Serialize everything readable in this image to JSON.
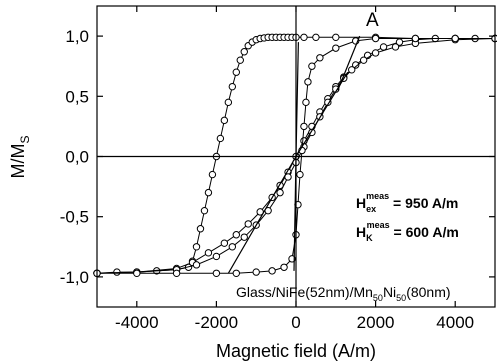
{
  "chart_data": {
    "type": "scatter",
    "xlabel": "Magnetic field (A/m)",
    "ylabel": {
      "main": "M/M",
      "sub": "S"
    },
    "xlim": [
      -5000,
      5000
    ],
    "ylim": [
      -1.25,
      1.25
    ],
    "x_ticks": [
      -4000,
      -2000,
      0,
      2000,
      4000
    ],
    "x_tick_labels": [
      "-4000",
      "-2000",
      "0",
      "2000",
      "4000"
    ],
    "y_ticks": [
      1.0,
      0.5,
      0.0,
      -0.5,
      -1.0
    ],
    "y_tick_labels": [
      "1,0",
      "0,5",
      "0,0",
      "-0,5",
      "-1,0"
    ],
    "grid": false,
    "zero_lines": true,
    "marker": "open-circle",
    "series": [
      {
        "x": [
          -5000,
          -4500,
          -4000,
          -3500,
          -3000,
          -2700,
          -2600,
          -2500,
          -2400,
          -2300,
          -2200,
          -2100,
          -2000,
          -1900,
          -1800,
          -1700,
          -1600,
          -1500,
          -1400,
          -1300,
          -1200,
          -1100,
          -1000,
          -900,
          -800,
          -700,
          -600,
          -500,
          -400,
          -300,
          -200,
          -100,
          0,
          200,
          500,
          1000,
          2000,
          3000,
          4000,
          5000
        ],
        "y": [
          -0.97,
          -0.96,
          -0.96,
          -0.95,
          -0.94,
          -0.92,
          -0.87,
          -0.75,
          -0.6,
          -0.45,
          -0.3,
          -0.15,
          0.0,
          0.15,
          0.3,
          0.45,
          0.58,
          0.7,
          0.8,
          0.87,
          0.92,
          0.95,
          0.97,
          0.98,
          0.985,
          0.99,
          0.99,
          0.99,
          0.99,
          0.99,
          0.99,
          0.99,
          0.99,
          0.99,
          0.99,
          0.99,
          0.99,
          0.98,
          0.98,
          0.98
        ]
      },
      {
        "x": [
          -5000,
          -4000,
          -3000,
          -2600,
          -2200,
          -1800,
          -1500,
          -1200,
          -900,
          -600,
          -400,
          -200,
          0,
          200,
          400,
          600,
          800,
          1000,
          1200,
          1500,
          1800,
          2200,
          2600,
          3000,
          3500,
          4000,
          4500,
          5000
        ],
        "y": [
          -0.97,
          -0.96,
          -0.93,
          -0.88,
          -0.8,
          -0.72,
          -0.65,
          -0.56,
          -0.46,
          -0.34,
          -0.24,
          -0.13,
          0.0,
          0.13,
          0.25,
          0.37,
          0.48,
          0.58,
          0.66,
          0.76,
          0.84,
          0.91,
          0.95,
          0.97,
          0.98,
          0.98,
          0.98,
          0.98
        ]
      },
      {
        "x": [
          5000,
          4000,
          3000,
          2500,
          2000,
          1700,
          1400,
          1200,
          1000,
          800,
          600,
          400,
          200,
          0,
          -200,
          -400,
          -700,
          -1000,
          -1300,
          -1600,
          -2000,
          -2500,
          -3000,
          -4000,
          -5000
        ],
        "y": [
          0.98,
          0.97,
          0.94,
          0.91,
          0.86,
          0.8,
          0.72,
          0.65,
          0.56,
          0.45,
          0.33,
          0.2,
          0.08,
          -0.05,
          -0.17,
          -0.3,
          -0.45,
          -0.57,
          -0.67,
          -0.75,
          -0.83,
          -0.9,
          -0.94,
          -0.96,
          -0.97
        ]
      },
      {
        "x": [
          5000,
          4000,
          3000,
          2000,
          1500,
          1000,
          600,
          400,
          300,
          250,
          200,
          150,
          100,
          50,
          0,
          -100,
          -300,
          -600,
          -1000,
          -1500,
          -2000,
          -3000,
          -4000,
          -5000
        ],
        "y": [
          0.98,
          0.98,
          0.98,
          0.98,
          0.96,
          0.9,
          0.82,
          0.75,
          0.62,
          0.45,
          0.25,
          0.05,
          -0.15,
          -0.4,
          -0.65,
          -0.85,
          -0.92,
          -0.95,
          -0.96,
          -0.97,
          -0.97,
          -0.97,
          -0.97,
          -0.97
        ]
      }
    ],
    "lines": [
      {
        "x": [
          -1700,
          0,
          1300
        ],
        "y": [
          -0.97,
          0.0,
          0.7
        ]
      },
      {
        "x": [
          -50,
          0,
          60
        ],
        "y": [
          -0.95,
          0.0,
          0.95
        ]
      },
      {
        "x": [
          1050,
          1600
        ],
        "y": [
          0.55,
          1.0
        ]
      }
    ],
    "annotations": {
      "corner_letter": "A",
      "hex_label": "H",
      "hex_sub": "ex",
      "hex_sup": "meas",
      "hex_value": " = 950 A/m",
      "hk_label": "H",
      "hk_sub": "K",
      "hk_sup": "meas",
      "hk_value": " = 600 A/m",
      "sample": "Glass/NiFe(52nm)/Mn",
      "sample_sub1": "50",
      "sample_mid": "Ni",
      "sample_sub2": "50",
      "sample_end": "(80nm)"
    }
  }
}
